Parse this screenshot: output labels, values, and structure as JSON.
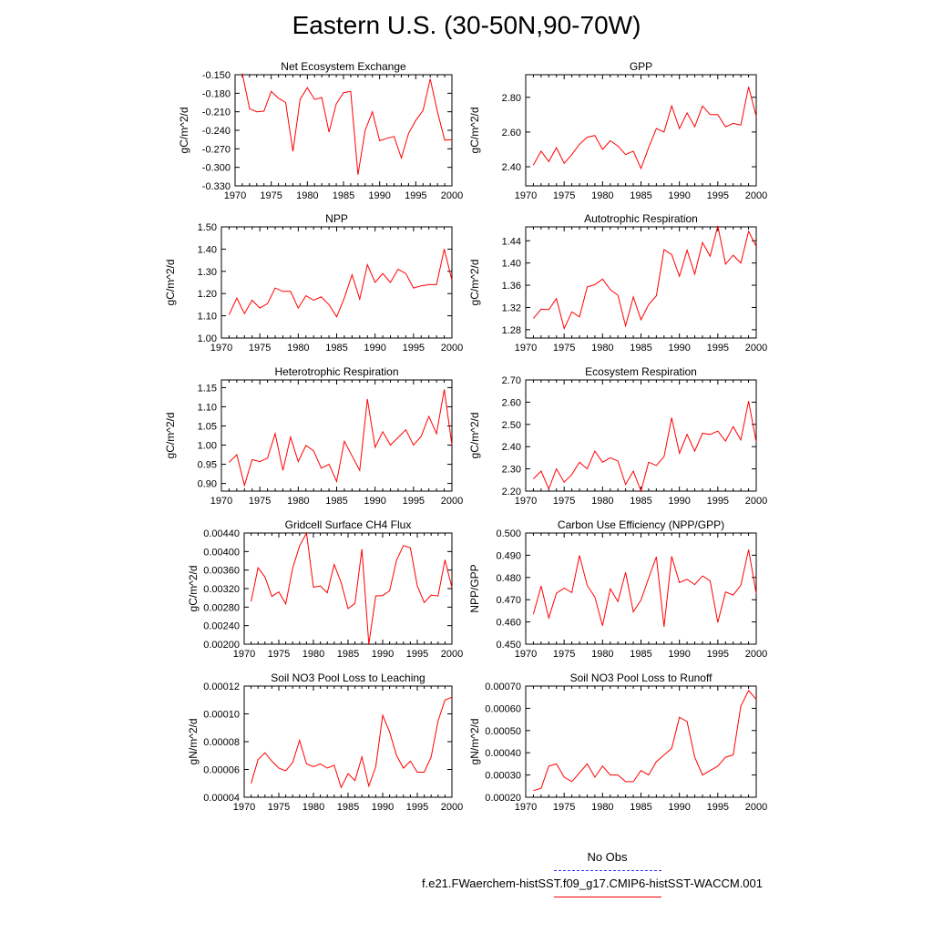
{
  "title": "Eastern U.S. (30-50N,90-70W)",
  "legend": {
    "obs_label": "No Obs",
    "run_label": "f.e21.FWaerchem-histSST.f09_g17.CMIP6-histSST-WACCM.001",
    "obs_color": "#3333ff",
    "run_color": "#ff0000"
  },
  "chart_data": [
    {
      "type": "line",
      "title": "Net Ecosystem Exchange",
      "ylabel": "gC/m^2/d",
      "xlim": [
        1970,
        2000
      ],
      "ylim": [
        -0.33,
        -0.15
      ],
      "yticks": [
        "-0.150",
        "-0.180",
        "-0.210",
        "-0.240",
        "-0.270",
        "-0.300",
        "-0.330"
      ],
      "ytick_values": [
        -0.15,
        -0.18,
        -0.21,
        -0.24,
        -0.27,
        -0.3,
        -0.33
      ],
      "xticks": [
        "1970",
        "1975",
        "1980",
        "1985",
        "1990",
        "1995",
        "2000"
      ],
      "x": [
        1971,
        1972,
        1973,
        1974,
        1975,
        1976,
        1977,
        1978,
        1979,
        1980,
        1981,
        1982,
        1983,
        1984,
        1985,
        1986,
        1987,
        1988,
        1989,
        1990,
        1991,
        1992,
        1993,
        1994,
        1995,
        1996,
        1997,
        1998,
        1999,
        2000
      ],
      "series": [
        {
          "values": [
            -0.148,
            -0.205,
            -0.21,
            -0.209,
            -0.177,
            -0.188,
            -0.195,
            -0.274,
            -0.19,
            -0.171,
            -0.19,
            -0.187,
            -0.243,
            -0.197,
            -0.179,
            -0.177,
            -0.312,
            -0.24,
            -0.21,
            -0.257,
            -0.253,
            -0.25,
            -0.285,
            -0.245,
            -0.224,
            -0.208,
            -0.157,
            -0.21,
            -0.256,
            -0.255
          ]
        }
      ]
    },
    {
      "type": "line",
      "title": "GPP",
      "ylabel": "gC/m^2/d",
      "xlim": [
        1970,
        2000
      ],
      "ylim": [
        2.29,
        2.93
      ],
      "yticks": [
        "2.80",
        "2.60",
        "2.40"
      ],
      "ytick_values": [
        2.8,
        2.6,
        2.4
      ],
      "xticks": [
        "1970",
        "1975",
        "1980",
        "1985",
        "1990",
        "1995",
        "2000"
      ],
      "x": [
        1971,
        1972,
        1973,
        1974,
        1975,
        1976,
        1977,
        1978,
        1979,
        1980,
        1981,
        1982,
        1983,
        1984,
        1985,
        1986,
        1987,
        1988,
        1989,
        1990,
        1991,
        1992,
        1993,
        1994,
        1995,
        1996,
        1997,
        1998,
        1999,
        2000
      ],
      "series": [
        {
          "values": [
            2.41,
            2.49,
            2.43,
            2.51,
            2.42,
            2.47,
            2.53,
            2.57,
            2.58,
            2.5,
            2.55,
            2.52,
            2.47,
            2.49,
            2.39,
            2.51,
            2.62,
            2.6,
            2.75,
            2.62,
            2.71,
            2.63,
            2.75,
            2.7,
            2.7,
            2.63,
            2.65,
            2.64,
            2.86,
            2.69
          ]
        }
      ]
    },
    {
      "type": "line",
      "title": "NPP",
      "ylabel": "gC/m^2/d",
      "xlim": [
        1970,
        2000
      ],
      "ylim": [
        1.0,
        1.5
      ],
      "yticks": [
        "1.50",
        "1.40",
        "1.30",
        "1.20",
        "1.10",
        "1.00"
      ],
      "ytick_values": [
        1.5,
        1.4,
        1.3,
        1.2,
        1.1,
        1.0
      ],
      "xticks": [
        "1970",
        "1975",
        "1980",
        "1985",
        "1990",
        "1995",
        "2000"
      ],
      "x": [
        1971,
        1972,
        1973,
        1974,
        1975,
        1976,
        1977,
        1978,
        1979,
        1980,
        1981,
        1982,
        1983,
        1984,
        1985,
        1986,
        1987,
        1988,
        1989,
        1990,
        1991,
        1992,
        1993,
        1994,
        1995,
        1996,
        1997,
        1998,
        1999,
        2000
      ],
      "series": [
        {
          "values": [
            1.105,
            1.18,
            1.11,
            1.17,
            1.135,
            1.155,
            1.225,
            1.21,
            1.21,
            1.135,
            1.19,
            1.17,
            1.185,
            1.15,
            1.095,
            1.18,
            1.285,
            1.175,
            1.33,
            1.25,
            1.29,
            1.25,
            1.31,
            1.29,
            1.225,
            1.235,
            1.24,
            1.24,
            1.4,
            1.26
          ]
        }
      ]
    },
    {
      "type": "line",
      "title": "Autotrophic Respiration",
      "ylabel": "gC/m^2/d",
      "xlim": [
        1970,
        2000
      ],
      "ylim": [
        1.265,
        1.465
      ],
      "yticks": [
        "1.44",
        "1.40",
        "1.36",
        "1.32",
        "1.28"
      ],
      "ytick_values": [
        1.44,
        1.4,
        1.36,
        1.32,
        1.28
      ],
      "xticks": [
        "1970",
        "1975",
        "1980",
        "1985",
        "1990",
        "1995",
        "2000"
      ],
      "x": [
        1971,
        1972,
        1973,
        1974,
        1975,
        1976,
        1977,
        1978,
        1979,
        1980,
        1981,
        1982,
        1983,
        1984,
        1985,
        1986,
        1987,
        1988,
        1989,
        1990,
        1991,
        1992,
        1993,
        1994,
        1995,
        1996,
        1997,
        1998,
        1999,
        2000
      ],
      "series": [
        {
          "values": [
            1.3,
            1.317,
            1.316,
            1.336,
            1.282,
            1.312,
            1.303,
            1.357,
            1.361,
            1.371,
            1.352,
            1.342,
            1.287,
            1.339,
            1.298,
            1.325,
            1.341,
            1.424,
            1.415,
            1.376,
            1.423,
            1.38,
            1.437,
            1.412,
            1.467,
            1.398,
            1.414,
            1.4,
            1.457,
            1.43
          ]
        }
      ]
    },
    {
      "type": "line",
      "title": "Heterotrophic Respiration",
      "ylabel": "gC/m^2/d",
      "xlim": [
        1970,
        2000
      ],
      "ylim": [
        0.88,
        1.17
      ],
      "yticks": [
        "1.15",
        "1.10",
        "1.05",
        "1.00",
        "0.95",
        "0.90"
      ],
      "ytick_values": [
        1.15,
        1.1,
        1.05,
        1.0,
        0.95,
        0.9
      ],
      "xticks": [
        "1970",
        "1975",
        "1980",
        "1985",
        "1990",
        "1995",
        "2000"
      ],
      "x": [
        1971,
        1972,
        1973,
        1974,
        1975,
        1976,
        1977,
        1978,
        1979,
        1980,
        1981,
        1982,
        1983,
        1984,
        1985,
        1986,
        1987,
        1988,
        1989,
        1990,
        1991,
        1992,
        1993,
        1994,
        1995,
        1996,
        1997,
        1998,
        1999,
        2000
      ],
      "series": [
        {
          "values": [
            0.955,
            0.975,
            0.895,
            0.962,
            0.957,
            0.966,
            1.03,
            0.934,
            1.021,
            0.957,
            0.999,
            0.985,
            0.94,
            0.95,
            0.905,
            1.01,
            0.972,
            0.934,
            1.12,
            0.994,
            1.035,
            1.0,
            1.02,
            1.04,
            1.0,
            1.023,
            1.075,
            1.03,
            1.145,
            1.0
          ]
        }
      ]
    },
    {
      "type": "line",
      "title": "Ecosystem Respiration",
      "ylabel": "gC/m^2/d",
      "xlim": [
        1970,
        2000
      ],
      "ylim": [
        2.2,
        2.7
      ],
      "yticks": [
        "2.70",
        "2.60",
        "2.50",
        "2.40",
        "2.30",
        "2.20"
      ],
      "ytick_values": [
        2.7,
        2.6,
        2.5,
        2.4,
        2.3,
        2.2
      ],
      "xticks": [
        "1970",
        "1975",
        "1980",
        "1985",
        "1990",
        "1995",
        "2000"
      ],
      "x": [
        1971,
        1972,
        1973,
        1974,
        1975,
        1976,
        1977,
        1978,
        1979,
        1980,
        1981,
        1982,
        1983,
        1984,
        1985,
        1986,
        1987,
        1988,
        1989,
        1990,
        1991,
        1992,
        1993,
        1994,
        1995,
        1996,
        1997,
        1998,
        1999,
        2000
      ],
      "series": [
        {
          "values": [
            2.255,
            2.29,
            2.21,
            2.3,
            2.24,
            2.275,
            2.33,
            2.3,
            2.38,
            2.33,
            2.35,
            2.335,
            2.23,
            2.29,
            2.2,
            2.33,
            2.315,
            2.355,
            2.53,
            2.37,
            2.455,
            2.38,
            2.46,
            2.455,
            2.47,
            2.425,
            2.49,
            2.43,
            2.605,
            2.42
          ]
        }
      ]
    },
    {
      "type": "line",
      "title": "Gridcell Surface CH4 Flux",
      "ylabel": "gC/m^2/d",
      "xlim": [
        1970,
        2000
      ],
      "ylim": [
        0.002,
        0.0044
      ],
      "yticks": [
        "0.00440",
        "0.00400",
        "0.00360",
        "0.00320",
        "0.00280",
        "0.00240",
        "0.00200"
      ],
      "ytick_values": [
        0.0044,
        0.004,
        0.0036,
        0.0032,
        0.0028,
        0.0024,
        0.002
      ],
      "xticks": [
        "1970",
        "1975",
        "1980",
        "1985",
        "1990",
        "1995",
        "2000"
      ],
      "x": [
        1971,
        1972,
        1973,
        1974,
        1975,
        1976,
        1977,
        1978,
        1979,
        1980,
        1981,
        1982,
        1983,
        1984,
        1985,
        1986,
        1987,
        1988,
        1989,
        1990,
        1991,
        1992,
        1993,
        1994,
        1995,
        1996,
        1997,
        1998,
        1999,
        2000
      ],
      "series": [
        {
          "values": [
            0.00292,
            0.00365,
            0.00345,
            0.00303,
            0.00313,
            0.00287,
            0.00364,
            0.00412,
            0.0044,
            0.00323,
            0.00326,
            0.00311,
            0.00372,
            0.00333,
            0.00277,
            0.00288,
            0.00405,
            0.002,
            0.00304,
            0.00305,
            0.00315,
            0.00381,
            0.00413,
            0.00408,
            0.00326,
            0.0029,
            0.00306,
            0.00304,
            0.00382,
            0.00322
          ]
        }
      ]
    },
    {
      "type": "line",
      "title": "Carbon Use Efficiency (NPP/GPP)",
      "ylabel": "NPP/GPP",
      "xlim": [
        1970,
        2000
      ],
      "ylim": [
        0.45,
        0.5
      ],
      "yticks": [
        "0.500",
        "0.490",
        "0.480",
        "0.470",
        "0.460",
        "0.450"
      ],
      "ytick_values": [
        0.5,
        0.49,
        0.48,
        0.47,
        0.46,
        0.45
      ],
      "xticks": [
        "1970",
        "1975",
        "1980",
        "1985",
        "1990",
        "1995",
        "2000"
      ],
      "x": [
        1971,
        1972,
        1973,
        1974,
        1975,
        1976,
        1977,
        1978,
        1979,
        1980,
        1981,
        1982,
        1983,
        1984,
        1985,
        1986,
        1987,
        1988,
        1989,
        1990,
        1991,
        1992,
        1993,
        1994,
        1995,
        1996,
        1997,
        1998,
        1999,
        2000
      ],
      "series": [
        {
          "values": [
            0.4635,
            0.4762,
            0.4618,
            0.4729,
            0.4752,
            0.4732,
            0.4899,
            0.4764,
            0.4712,
            0.4583,
            0.4749,
            0.4692,
            0.4823,
            0.4645,
            0.4698,
            0.4797,
            0.4893,
            0.4578,
            0.4895,
            0.4777,
            0.4792,
            0.4768,
            0.4807,
            0.4785,
            0.4598,
            0.4735,
            0.4721,
            0.4765,
            0.4925,
            0.4728
          ]
        }
      ]
    },
    {
      "type": "line",
      "title": "Soil NO3 Pool Loss to Leaching",
      "ylabel": "gN/m^2/d",
      "xlim": [
        1970,
        2000
      ],
      "ylim": [
        4e-05,
        0.00012
      ],
      "yticks": [
        "0.00012",
        "0.00010",
        "0.00008",
        "0.00006",
        "0.00004"
      ],
      "ytick_values": [
        0.00012,
        0.0001,
        8e-05,
        6e-05,
        4e-05
      ],
      "xticks": [
        "1970",
        "1975",
        "1980",
        "1985",
        "1990",
        "1995",
        "2000"
      ],
      "x": [
        1971,
        1972,
        1973,
        1974,
        1975,
        1976,
        1977,
        1978,
        1979,
        1980,
        1981,
        1982,
        1983,
        1984,
        1985,
        1986,
        1987,
        1988,
        1989,
        1990,
        1991,
        1992,
        1993,
        1994,
        1995,
        1996,
        1997,
        1998,
        1999,
        2000
      ],
      "series": [
        {
          "values": [
            5e-05,
            6.7e-05,
            7.2e-05,
            6.6e-05,
            6.1e-05,
            5.9e-05,
            6.5e-05,
            8.1e-05,
            6.4e-05,
            6.2e-05,
            6.4e-05,
            6.1e-05,
            6.3e-05,
            4.7e-05,
            5.7e-05,
            5.2e-05,
            6.9e-05,
            4.8e-05,
            6.2e-05,
            9.9e-05,
            8.7e-05,
            7e-05,
            6.1e-05,
            6.6e-05,
            5.8e-05,
            5.8e-05,
            6.9e-05,
            9.5e-05,
            0.00011,
            0.000112
          ]
        }
      ]
    },
    {
      "type": "line",
      "title": "Soil NO3 Pool Loss to Runoff",
      "ylabel": "gN/m^2/d",
      "xlim": [
        1970,
        2000
      ],
      "ylim": [
        0.0002,
        0.0007
      ],
      "yticks": [
        "0.00070",
        "0.00060",
        "0.00050",
        "0.00040",
        "0.00030",
        "0.00020"
      ],
      "ytick_values": [
        0.0007,
        0.0006,
        0.0005,
        0.0004,
        0.0003,
        0.0002
      ],
      "xticks": [
        "1970",
        "1975",
        "1980",
        "1985",
        "1990",
        "1995",
        "2000"
      ],
      "x": [
        1971,
        1972,
        1973,
        1974,
        1975,
        1976,
        1977,
        1978,
        1979,
        1980,
        1981,
        1982,
        1983,
        1984,
        1985,
        1986,
        1987,
        1988,
        1989,
        1990,
        1991,
        1992,
        1993,
        1994,
        1995,
        1996,
        1997,
        1998,
        1999,
        2000
      ],
      "series": [
        {
          "values": [
            0.00023,
            0.00024,
            0.00034,
            0.00035,
            0.00029,
            0.00027,
            0.00031,
            0.00035,
            0.00029,
            0.00034,
            0.0003,
            0.0003,
            0.00027,
            0.00027,
            0.00032,
            0.0003,
            0.00036,
            0.00039,
            0.00042,
            0.00056,
            0.00054,
            0.00038,
            0.0003,
            0.00032,
            0.00034,
            0.00038,
            0.00039,
            0.00061,
            0.00068,
            0.00064
          ]
        }
      ]
    }
  ]
}
